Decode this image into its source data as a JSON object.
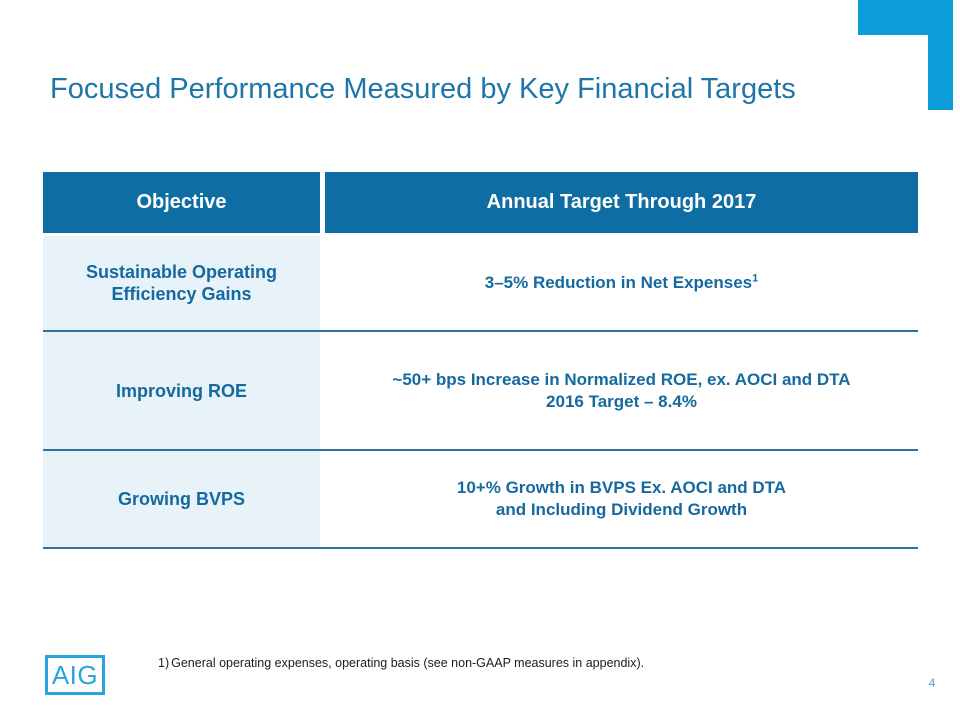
{
  "slide": {
    "title": "Focused Performance Measured by Key Financial Targets",
    "page_number": "4"
  },
  "table": {
    "header": {
      "objective": "Objective",
      "target": "Annual Target Through 2017"
    },
    "rows": [
      {
        "objective": "Sustainable Operating Efficiency Gains",
        "target_line1": "3–5% Reduction in Net Expenses",
        "target_sup": "1",
        "target_line2": ""
      },
      {
        "objective": "Improving ROE",
        "target_line1": "~50+ bps Increase in Normalized ROE, ex. AOCI and DTA",
        "target_sup": "",
        "target_line2": "2016 Target – 8.4%"
      },
      {
        "objective": "Growing BVPS",
        "target_line1": "10+% Growth in BVPS Ex. AOCI and DTA",
        "target_sup": "",
        "target_line2": "and Including Dividend Growth"
      }
    ]
  },
  "footer": {
    "logo_text": "AIG",
    "footnote_number": "1)",
    "footnote_text": "General operating expenses, operating basis (see non-GAAP measures in appendix)."
  },
  "colors": {
    "accent_cyan": "#0a9dda",
    "header_bg": "#0e6ea4",
    "cell_bg": "#e7f2f9",
    "text_blue": "#16699f",
    "title_blue": "#1e76a8",
    "divider": "#2e739e",
    "logo_blue": "#2aa4dc",
    "page_number_blue": "#47a5d6"
  }
}
